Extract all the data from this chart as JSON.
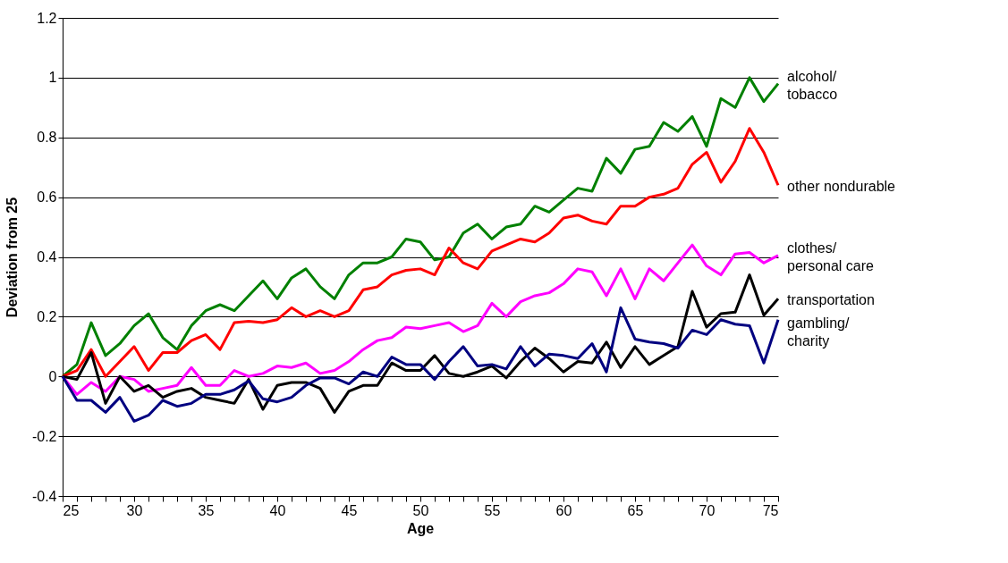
{
  "chart_data": {
    "type": "line",
    "xlabel": "Age",
    "ylabel": "Deviation from 25",
    "x": [
      25,
      26,
      27,
      28,
      29,
      30,
      31,
      32,
      33,
      34,
      35,
      36,
      37,
      38,
      39,
      40,
      41,
      42,
      43,
      44,
      45,
      46,
      47,
      48,
      49,
      50,
      51,
      52,
      53,
      54,
      55,
      56,
      57,
      58,
      59,
      60,
      61,
      62,
      63,
      64,
      65,
      66,
      67,
      68,
      69,
      70,
      71,
      72,
      73,
      74,
      75
    ],
    "series": [
      {
        "name": "alcohol/\ntobacco",
        "color": "#008000",
        "values": [
          0,
          0.04,
          0.18,
          0.07,
          0.11,
          0.17,
          0.21,
          0.13,
          0.09,
          0.17,
          0.22,
          0.24,
          0.22,
          0.27,
          0.32,
          0.26,
          0.33,
          0.36,
          0.3,
          0.26,
          0.34,
          0.38,
          0.38,
          0.4,
          0.46,
          0.45,
          0.39,
          0.4,
          0.48,
          0.51,
          0.46,
          0.5,
          0.51,
          0.57,
          0.55,
          0.59,
          0.63,
          0.62,
          0.73,
          0.68,
          0.76,
          0.77,
          0.85,
          0.82,
          0.87,
          0.77,
          0.93,
          0.9,
          1.0,
          0.92,
          0.98
        ]
      },
      {
        "name": "other nondurable",
        "color": "#ff0000",
        "values": [
          0,
          0.02,
          0.09,
          0.0,
          0.05,
          0.1,
          0.02,
          0.08,
          0.08,
          0.12,
          0.14,
          0.09,
          0.18,
          0.185,
          0.18,
          0.19,
          0.23,
          0.2,
          0.22,
          0.2,
          0.22,
          0.29,
          0.3,
          0.34,
          0.355,
          0.36,
          0.34,
          0.43,
          0.38,
          0.36,
          0.42,
          0.44,
          0.46,
          0.45,
          0.48,
          0.53,
          0.54,
          0.52,
          0.51,
          0.57,
          0.57,
          0.6,
          0.61,
          0.63,
          0.71,
          0.75,
          0.65,
          0.72,
          0.83,
          0.75,
          0.64
        ]
      },
      {
        "name": "clothes/\npersonal care",
        "color": "#ff00ff",
        "values": [
          0,
          -0.06,
          -0.02,
          -0.05,
          0,
          -0.01,
          -0.05,
          -0.04,
          -0.03,
          0.03,
          -0.03,
          -0.03,
          0.02,
          0.0,
          0.01,
          0.035,
          0.03,
          0.045,
          0.01,
          0.02,
          0.05,
          0.09,
          0.12,
          0.13,
          0.165,
          0.16,
          0.17,
          0.18,
          0.15,
          0.17,
          0.245,
          0.2,
          0.25,
          0.27,
          0.28,
          0.31,
          0.36,
          0.35,
          0.27,
          0.36,
          0.26,
          0.36,
          0.32,
          0.38,
          0.44,
          0.37,
          0.34,
          0.41,
          0.415,
          0.38,
          0.405
        ]
      },
      {
        "name": "transportation",
        "color": "#000000",
        "values": [
          0,
          -0.01,
          0.08,
          -0.09,
          0,
          -0.05,
          -0.03,
          -0.07,
          -0.05,
          -0.04,
          -0.07,
          -0.08,
          -0.09,
          -0.01,
          -0.11,
          -0.03,
          -0.02,
          -0.02,
          -0.04,
          -0.12,
          -0.05,
          -0.03,
          -0.03,
          0.045,
          0.02,
          0.02,
          0.07,
          0.01,
          0.0,
          0.015,
          0.035,
          -0.005,
          0.05,
          0.095,
          0.06,
          0.015,
          0.05,
          0.045,
          0.115,
          0.03,
          0.1,
          0.04,
          0.07,
          0.1,
          0.285,
          0.165,
          0.21,
          0.215,
          0.34,
          0.205,
          0.26
        ]
      },
      {
        "name": "gambling/\ncharity",
        "color": "#000080",
        "values": [
          0,
          -0.08,
          -0.08,
          -0.12,
          -0.07,
          -0.15,
          -0.13,
          -0.08,
          -0.1,
          -0.09,
          -0.06,
          -0.06,
          -0.045,
          -0.015,
          -0.075,
          -0.085,
          -0.07,
          -0.03,
          -0.005,
          -0.005,
          -0.025,
          0.015,
          0.0,
          0.065,
          0.04,
          0.04,
          -0.01,
          0.05,
          0.1,
          0.035,
          0.04,
          0.025,
          0.1,
          0.035,
          0.075,
          0.07,
          0.06,
          0.11,
          0.015,
          0.23,
          0.125,
          0.115,
          0.11,
          0.095,
          0.155,
          0.14,
          0.19,
          0.175,
          0.17,
          0.045,
          0.19
        ]
      }
    ],
    "xlim": [
      25,
      75
    ],
    "xticks": [
      25,
      {
        "value": 26,
        "label": null
      },
      {
        "value": 27,
        "label": null
      },
      {
        "value": 28,
        "label": null
      },
      {
        "value": 29,
        "label": null
      },
      30,
      {
        "value": 31,
        "label": null
      },
      {
        "value": 32,
        "label": null
      },
      {
        "value": 33,
        "label": null
      },
      {
        "value": 34,
        "label": null
      },
      35,
      {
        "value": 36,
        "label": null
      },
      {
        "value": 37,
        "label": null
      },
      {
        "value": 38,
        "label": null
      },
      {
        "value": 39,
        "label": null
      },
      40,
      {
        "value": 41,
        "label": null
      },
      {
        "value": 42,
        "label": null
      },
      {
        "value": 43,
        "label": null
      },
      {
        "value": 44,
        "label": null
      },
      45,
      {
        "value": 46,
        "label": null
      },
      {
        "value": 47,
        "label": null
      },
      {
        "value": 48,
        "label": null
      },
      {
        "value": 49,
        "label": null
      },
      50,
      {
        "value": 51,
        "label": null
      },
      {
        "value": 52,
        "label": null
      },
      {
        "value": 53,
        "label": null
      },
      {
        "value": 54,
        "label": null
      },
      55,
      {
        "value": 56,
        "label": null
      },
      {
        "value": 57,
        "label": null
      },
      {
        "value": 58,
        "label": null
      },
      {
        "value": 59,
        "label": null
      },
      60,
      {
        "value": 61,
        "label": null
      },
      {
        "value": 62,
        "label": null
      },
      {
        "value": 63,
        "label": null
      },
      {
        "value": 64,
        "label": null
      },
      65,
      {
        "value": 66,
        "label": null
      },
      {
        "value": 67,
        "label": null
      },
      {
        "value": 68,
        "label": null
      },
      {
        "value": 69,
        "label": null
      },
      70,
      {
        "value": 71,
        "label": null
      },
      {
        "value": 72,
        "label": null
      },
      {
        "value": 73,
        "label": null
      },
      {
        "value": 74,
        "label": null
      },
      75
    ],
    "ylim": [
      -0.4,
      1.2
    ],
    "yticks": [
      -0.4,
      -0.2,
      0,
      0.2,
      0.4,
      0.6,
      0.8,
      1,
      1.2
    ],
    "grid": "y",
    "marker": "none",
    "line_style": "solid"
  }
}
